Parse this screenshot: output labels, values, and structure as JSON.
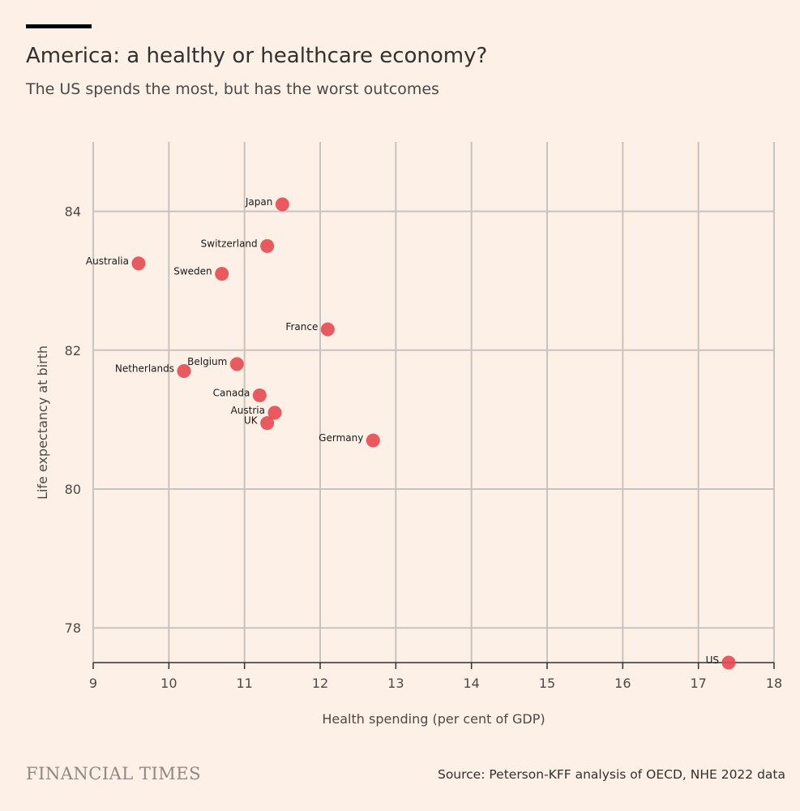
{
  "header": {
    "title": "America: a healthy or healthcare economy?",
    "subtitle": "The US spends the most, but has the worst outcomes"
  },
  "footer": {
    "logo": "FINANCIAL TIMES",
    "source": "Source: Peterson-KFF analysis of OECD, NHE 2022 data"
  },
  "colors": {
    "background": "#fdf0e6",
    "point": "#e8484f",
    "grid": "#c9c3bd"
  },
  "chart_data": {
    "type": "scatter",
    "title": "America: a healthy or healthcare economy?",
    "xlabel": "Health spending (per cent of GDP)",
    "ylabel": "Life expectancy at birth",
    "xlim": [
      9,
      18
    ],
    "ylim": [
      77.5,
      85
    ],
    "xticks": [
      9,
      10,
      11,
      12,
      13,
      14,
      15,
      16,
      17,
      18
    ],
    "yticks": [
      78,
      80,
      82,
      84
    ],
    "grid": true,
    "points": [
      {
        "label": "Japan",
        "x": 11.5,
        "y": 84.1
      },
      {
        "label": "Switzerland",
        "x": 11.3,
        "y": 83.5
      },
      {
        "label": "Australia",
        "x": 9.6,
        "y": 83.25
      },
      {
        "label": "Sweden",
        "x": 10.7,
        "y": 83.1
      },
      {
        "label": "France",
        "x": 12.1,
        "y": 82.3
      },
      {
        "label": "Belgium",
        "x": 10.9,
        "y": 81.8
      },
      {
        "label": "Netherlands",
        "x": 10.2,
        "y": 81.7
      },
      {
        "label": "Canada",
        "x": 11.2,
        "y": 81.35
      },
      {
        "label": "Austria",
        "x": 11.4,
        "y": 81.1
      },
      {
        "label": "UK",
        "x": 11.3,
        "y": 80.95
      },
      {
        "label": "Germany",
        "x": 12.7,
        "y": 80.7
      },
      {
        "label": "US",
        "x": 17.4,
        "y": 77.5
      }
    ]
  }
}
